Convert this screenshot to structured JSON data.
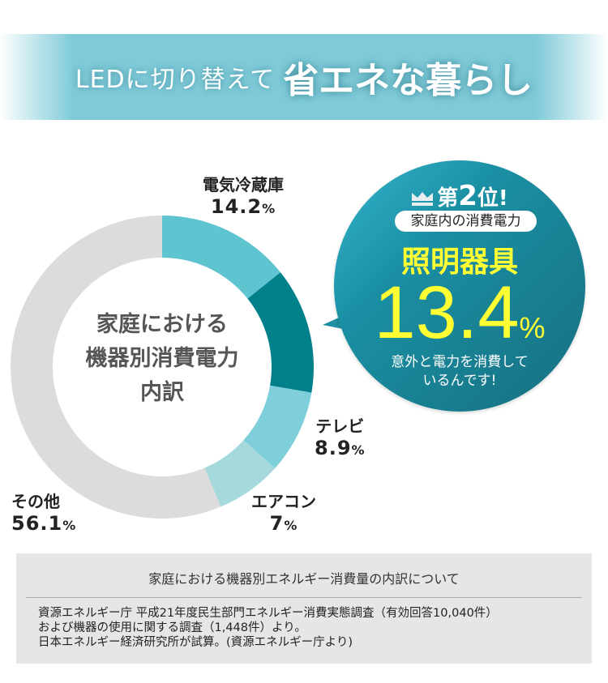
{
  "banner": {
    "title_light": "LEDに切り替えて",
    "title_bold": "省エネな暮らし"
  },
  "chart_data": {
    "type": "pie",
    "style": "donut",
    "title": "家庭における機器別消費電力内訳",
    "title_lines": [
      "家庭における",
      "機器別消費電力",
      "内訳"
    ],
    "categories": [
      "電気冷蔵庫",
      "照明器具",
      "テレビ",
      "エアコン",
      "その他"
    ],
    "values": [
      14.2,
      13.4,
      8.9,
      7,
      56.1
    ],
    "value_labels": [
      "14.2",
      "13.4",
      "8.9",
      "7",
      "56.1"
    ],
    "unit": "%",
    "colors": [
      "#5ec4d0",
      "#00808a",
      "#7ecfda",
      "#a6d9dc",
      "#dcdcdc"
    ],
    "start": "top",
    "direction": "clockwise"
  },
  "callout": {
    "rank_prefix": "第",
    "rank_num": "2",
    "rank_suffix": "位!",
    "pill": "家庭内の消費電力",
    "item": "照明器具",
    "value": "13.4",
    "unit": "%",
    "note_lines": [
      "意外と電力を消費して",
      "いるんです!"
    ],
    "icon": "crown-icon"
  },
  "source": {
    "heading": "家庭における機器別エネルギー消費量の内訳について",
    "lines": [
      "資源エネルギー庁 平成21年度民生部門エネルギー消費実態調査（有効回答10,040件）",
      "および機器の使用に関する調査（1,448件）より。",
      "日本エネルギー経済研究所が試算。(資源エネルギー庁より)"
    ]
  }
}
